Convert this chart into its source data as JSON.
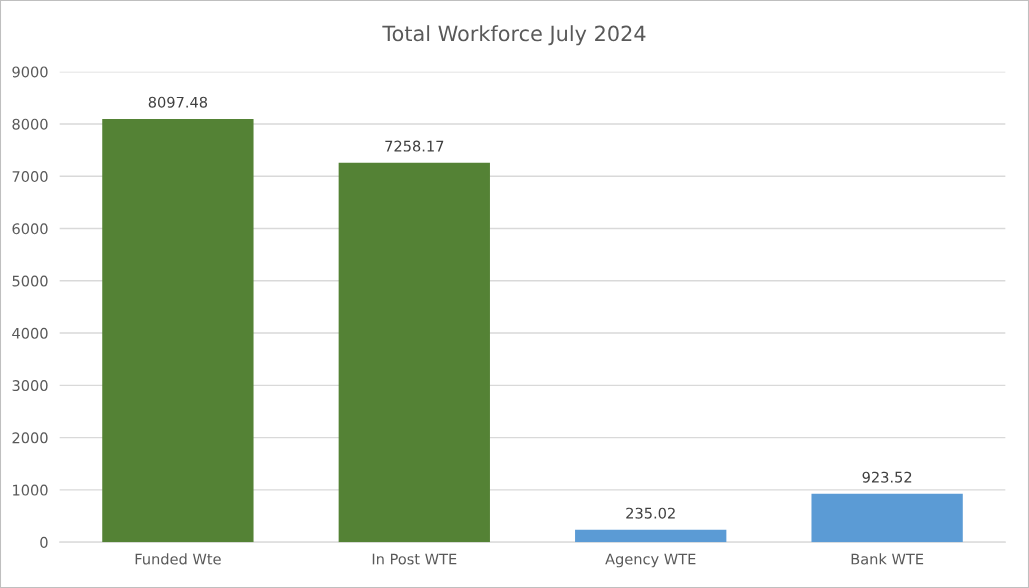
{
  "chart_data": {
    "type": "bar",
    "title": "Total Workforce July 2024",
    "categories": [
      "Funded Wte",
      "In Post WTE",
      "Agency WTE",
      "Bank WTE"
    ],
    "values": [
      8097.48,
      7258.17,
      235.02,
      923.52
    ],
    "colors": [
      "#548235",
      "#548235",
      "#5b9bd5",
      "#5b9bd5"
    ],
    "ylim": [
      0,
      9000
    ],
    "yticks": [
      0,
      1000,
      2000,
      3000,
      4000,
      5000,
      6000,
      7000,
      8000,
      9000
    ],
    "grid": "y",
    "data_labels": true
  }
}
